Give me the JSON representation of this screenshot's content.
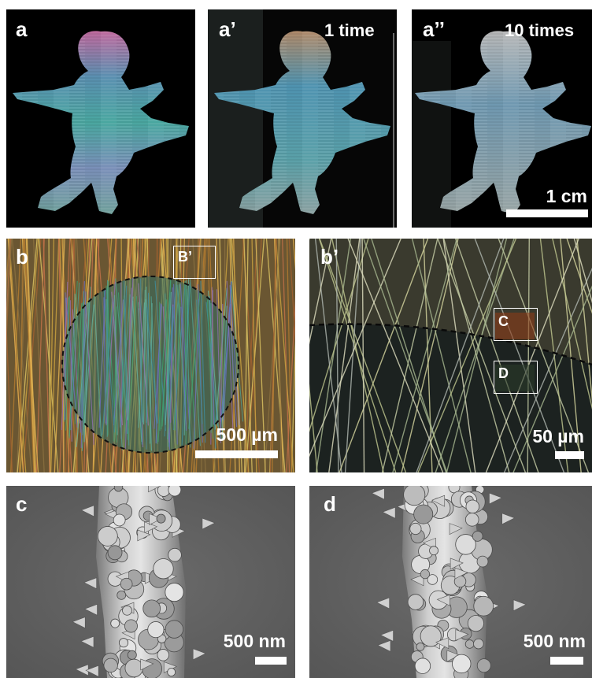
{
  "figure": {
    "panels": [
      {
        "label": "a"
      },
      {
        "label": "a’",
        "note": "1 time"
      },
      {
        "label": "a’’",
        "note": "10 times",
        "scalebar": "1 cm"
      },
      {
        "label": "b",
        "box": "B’",
        "scalebar": "500 µm"
      },
      {
        "label": "b’",
        "boxes": [
          "C",
          "D"
        ],
        "scalebar": "50 µm"
      },
      {
        "label": "c",
        "scalebar": "500 nm"
      },
      {
        "label": "d",
        "scalebar": "500 nm"
      }
    ]
  }
}
